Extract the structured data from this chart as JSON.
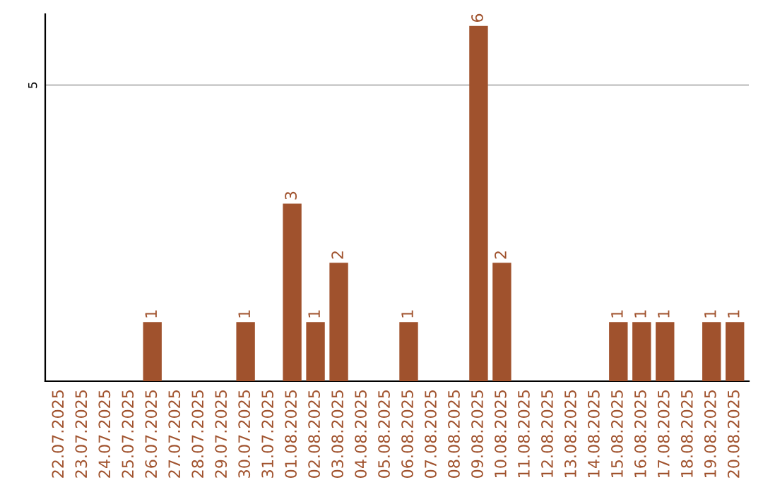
{
  "chart_data": {
    "type": "bar",
    "categories": [
      "22.07.2025",
      "23.07.2025",
      "24.07.2025",
      "25.07.2025",
      "26.07.2025",
      "27.07.2025",
      "28.07.2025",
      "29.07.2025",
      "30.07.2025",
      "31.07.2025",
      "01.08.2025",
      "02.08.2025",
      "03.08.2025",
      "04.08.2025",
      "05.08.2025",
      "06.08.2025",
      "07.08.2025",
      "08.08.2025",
      "09.08.2025",
      "10.08.2025",
      "11.08.2025",
      "12.08.2025",
      "13.08.2025",
      "14.08.2025",
      "15.08.2025",
      "16.08.2025",
      "17.08.2025",
      "18.08.2025",
      "19.08.2025",
      "20.08.2025"
    ],
    "values": [
      0,
      0,
      0,
      0,
      1,
      0,
      0,
      0,
      1,
      0,
      3,
      1,
      2,
      0,
      0,
      1,
      0,
      0,
      6,
      2,
      0,
      0,
      0,
      0,
      1,
      1,
      1,
      0,
      1,
      1
    ],
    "value_labels": [
      null,
      null,
      null,
      null,
      "1",
      null,
      null,
      null,
      "1",
      null,
      "3",
      "1",
      "2",
      null,
      null,
      "1",
      null,
      null,
      "6",
      "2",
      null,
      null,
      null,
      null,
      "1",
      "1",
      "1",
      null,
      "1",
      "1"
    ],
    "color": "#a0522d",
    "ylim": [
      0,
      6.2
    ],
    "yticks": [
      5
    ],
    "grid": "y"
  }
}
